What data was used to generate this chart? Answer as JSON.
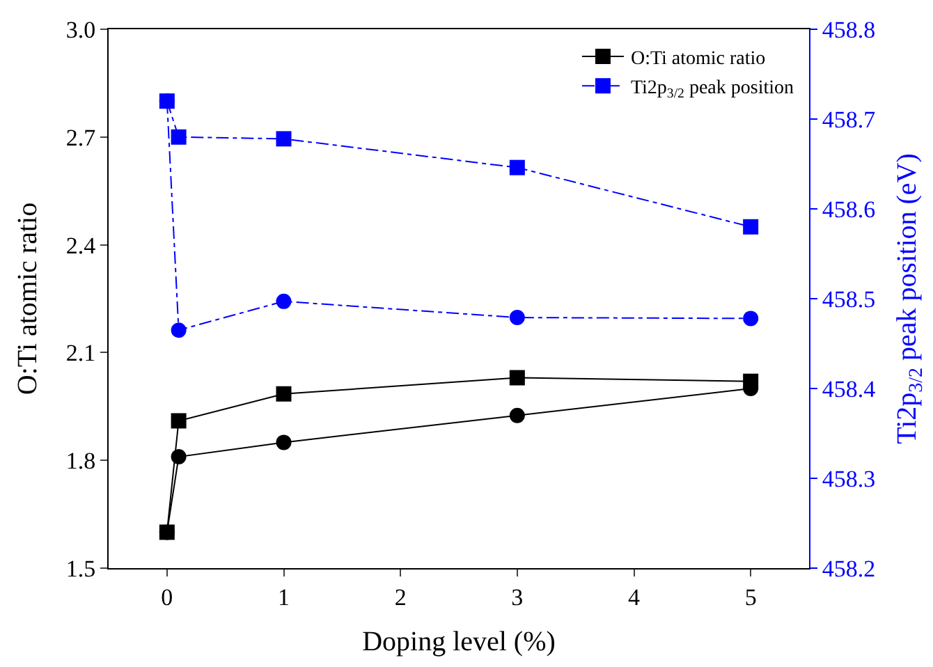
{
  "chart_data": {
    "type": "line",
    "xlabel": "Doping level (%)",
    "ylabel": "O:Ti atomic ratio",
    "y2label": "Ti2p$_{3/2}$ peak position (eV)",
    "xlim": [
      -0.5,
      5.5
    ],
    "xticks": [
      0,
      1,
      2,
      3,
      4,
      5
    ],
    "ylim": [
      1.5,
      3.0
    ],
    "yticks": [
      {
        "value": 1.5,
        "label": "1.5"
      },
      1.8,
      2.1,
      2.4,
      2.7,
      {
        "value": 3.0,
        "label": "3.0"
      }
    ],
    "y2lim": [
      458.2,
      458.8
    ],
    "y2ticks": [
      458.2,
      458.3,
      458.4,
      458.5,
      458.6,
      458.7,
      458.8
    ],
    "legend": "top right",
    "series": [
      {
        "name": "O:Ti atomic ratio",
        "color": "#000000",
        "marker": "square",
        "line_style": "solid",
        "x": [
          0,
          0.1,
          1,
          3,
          5
        ],
        "values": [
          1.6,
          1.91,
          1.985,
          2.03,
          2.02
        ]
      },
      {
        "color": "#000000",
        "marker": "circle",
        "line_style": "solid",
        "x": [
          0,
          0.1,
          1,
          3,
          5
        ],
        "values": [
          1.6,
          1.81,
          1.85,
          1.925,
          2.0
        ]
      },
      {
        "color": "#0000ff",
        "marker": "circle",
        "line_style": "dashed",
        "axis": "y2",
        "x": [
          0,
          0.1,
          1,
          3,
          5
        ],
        "values": [
          458.72,
          458.465,
          458.497,
          458.479,
          458.478
        ]
      },
      {
        "name": "Ti2p$_{3/2}$ peak position",
        "color": "#0000ff",
        "marker": "square",
        "line_style": "dashed",
        "axis": "y2",
        "x": [
          0,
          0.1,
          1,
          3,
          5
        ],
        "values": [
          458.72,
          458.68,
          458.678,
          458.646,
          458.58
        ]
      }
    ]
  }
}
